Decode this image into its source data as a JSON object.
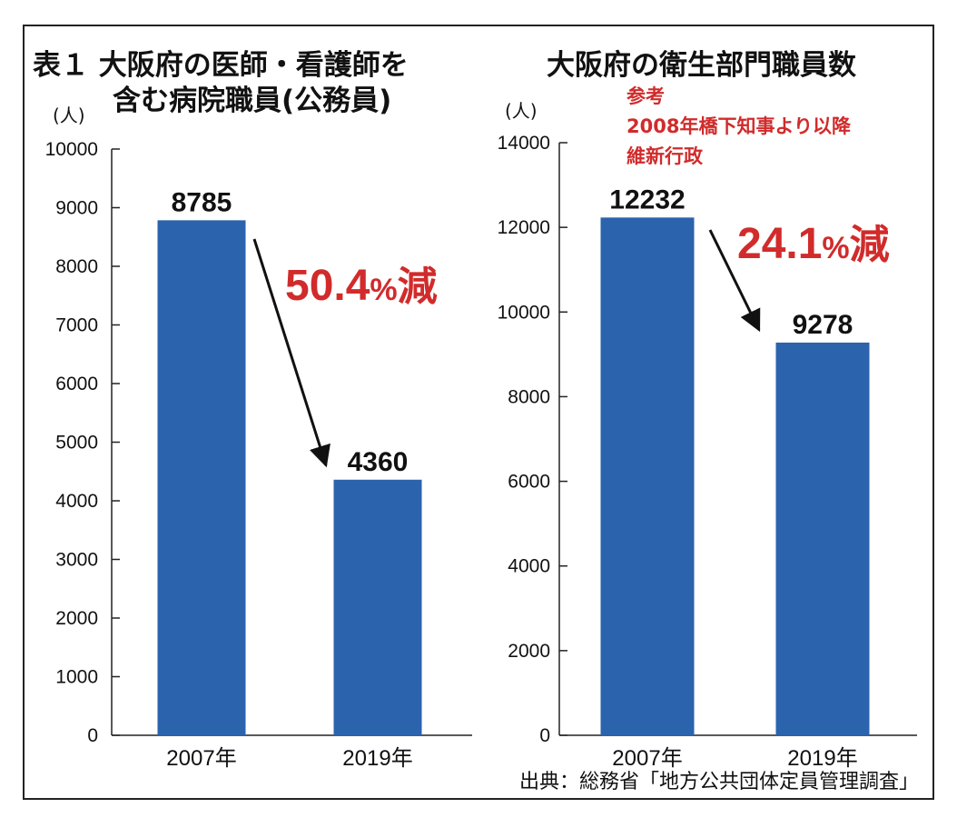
{
  "chart_data": [
    {
      "type": "bar",
      "title_line1": "表１ 大阪府の医師・看護師を",
      "title_line2": "含む病院職員(公務員)",
      "unit": "(人)",
      "categories": [
        "2007年",
        "2019年"
      ],
      "values": [
        8785,
        4360
      ],
      "value_labels": [
        "8785",
        "4360"
      ],
      "ylim": [
        0,
        10000
      ],
      "yticks": [
        0,
        1000,
        2000,
        3000,
        4000,
        5000,
        6000,
        7000,
        8000,
        9000,
        10000
      ],
      "change_num": "50.4",
      "change_pct": "%",
      "change_kanji": "減",
      "color": "#2b63ad"
    },
    {
      "type": "bar",
      "title_line1": "大阪府の衛生部門職員数",
      "unit": "(人)",
      "categories": [
        "2007年",
        "2019年"
      ],
      "values": [
        12232,
        9278
      ],
      "value_labels": [
        "12232",
        "9278"
      ],
      "ylim": [
        0,
        14000
      ],
      "yticks": [
        0,
        2000,
        4000,
        6000,
        8000,
        10000,
        12000,
        14000
      ],
      "change_num": "24.1",
      "change_pct": "%",
      "change_kanji": "減",
      "color": "#2b63ad",
      "note_lines": [
        "参考",
        "2008年橋下知事より以降",
        "維新行政"
      ]
    }
  ],
  "source": "出典：総務省「地方公共団体定員管理調査」",
  "colors": {
    "bar": "#2b63ad",
    "accent": "#d12b2b",
    "text": "#111111"
  }
}
